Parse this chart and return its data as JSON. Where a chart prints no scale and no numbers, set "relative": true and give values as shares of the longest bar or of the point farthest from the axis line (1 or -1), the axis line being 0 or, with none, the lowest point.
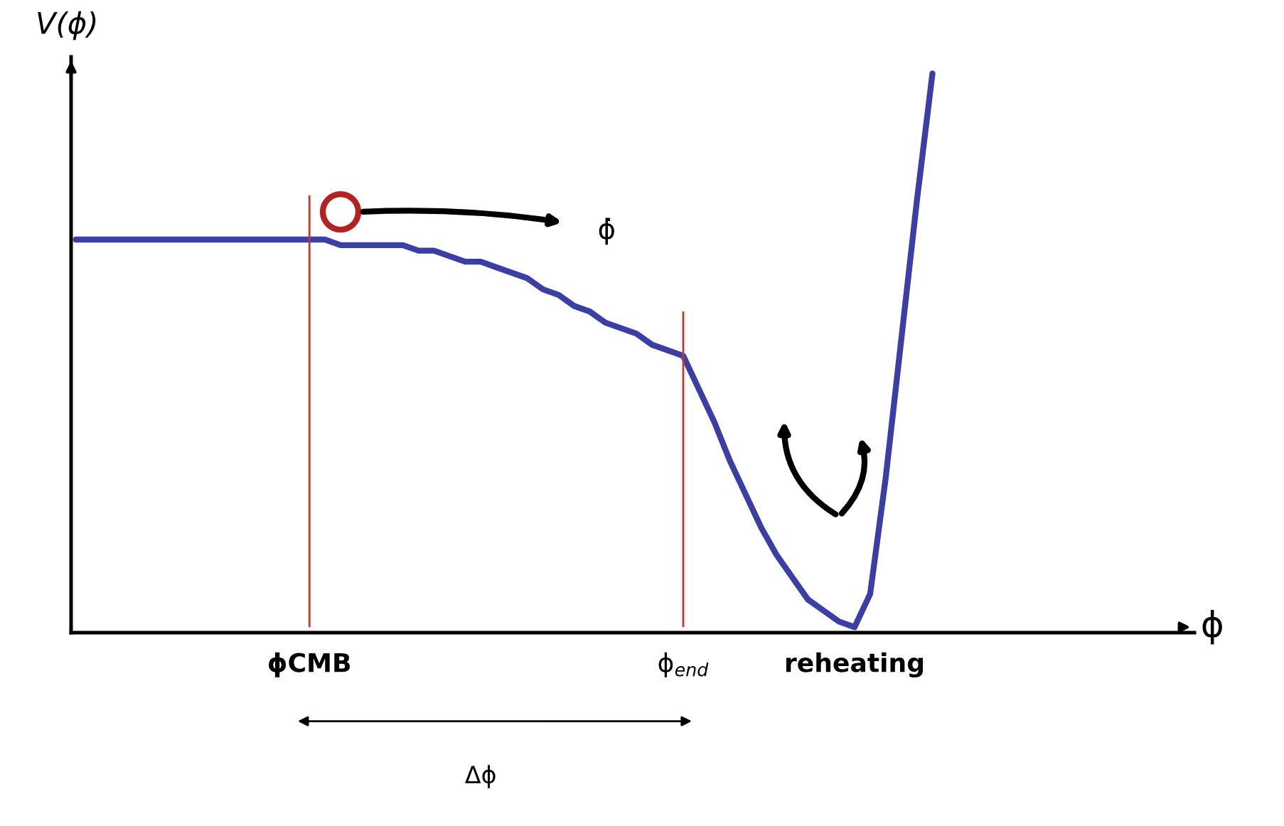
{
  "chart_data": {
    "type": "line",
    "relative": true,
    "tick_labels": "x",
    "ylabel": "V(ϕ)",
    "categories": [
      null,
      null,
      null,
      null,
      null,
      null,
      null,
      null,
      null,
      null,
      null,
      null,
      null,
      null,
      null,
      "ϕCMB",
      null,
      null,
      null,
      null,
      null,
      null,
      null,
      null,
      null,
      null,
      null,
      null,
      null,
      null,
      null,
      null,
      null,
      null,
      null,
      null,
      null,
      null,
      null,
      "ϕ$_{end}$",
      null,
      null,
      null,
      null,
      null,
      null,
      null,
      null,
      null,
      null,
      "reheating",
      null,
      null,
      null,
      null,
      null
    ],
    "values": [
      0.7,
      0.7,
      0.7,
      0.7,
      0.7,
      0.7,
      0.7,
      0.7,
      0.7,
      0.7,
      0.7,
      0.7,
      0.7,
      0.7,
      0.7,
      0.7,
      0.7,
      0.69,
      0.69,
      0.69,
      0.69,
      0.69,
      0.68,
      0.68,
      0.67,
      0.66,
      0.66,
      0.65,
      0.64,
      0.63,
      0.61,
      0.6,
      0.58,
      0.57,
      0.55,
      0.54,
      0.53,
      0.51,
      0.5,
      0.49,
      0.43,
      0.37,
      0.3,
      0.24,
      0.18,
      0.13,
      0.09,
      0.05,
      0.03,
      0.01,
      0,
      0.06,
      0.27,
      0.52,
      0.77,
      1
    ],
    "color": "#3b3fa3",
    "ref_lines": [
      {
        "axis": "x",
        "value": "ϕCMB",
        "color": "#c0392b"
      },
      {
        "axis": "x",
        "value": "ϕ$_{end}$",
        "color": "#c0392b"
      }
    ],
    "annotations": [
      "ϕ̇",
      "Δϕ",
      "ϕ"
    ]
  }
}
